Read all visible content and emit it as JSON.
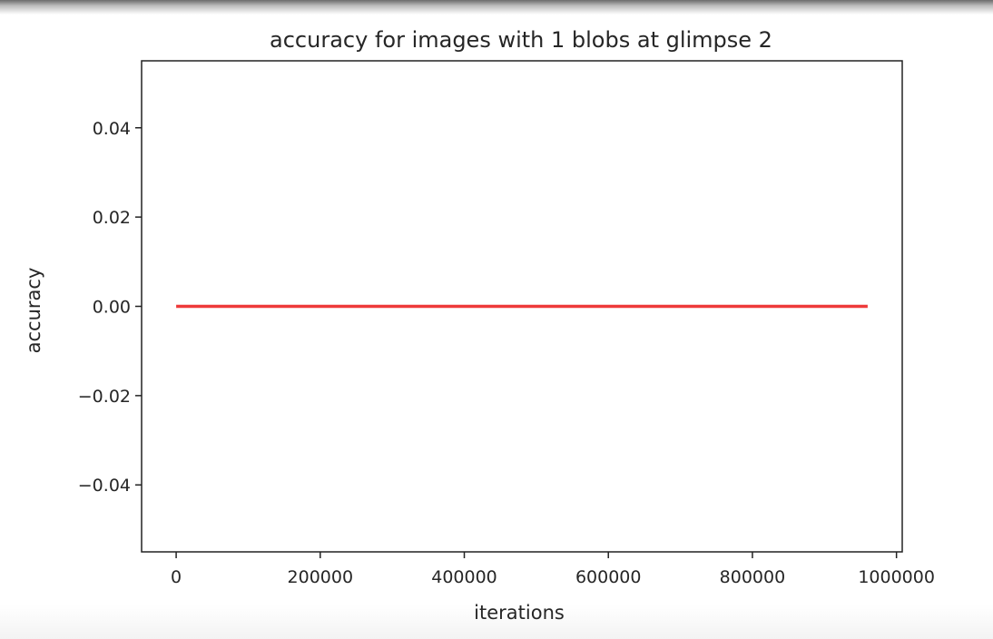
{
  "chart_data": {
    "type": "line",
    "title": "accuracy for images with 1 blobs at glimpse 2",
    "xlabel": "iterations",
    "ylabel": "accuracy",
    "xlim": [
      -48000,
      1008000
    ],
    "ylim": [
      -0.055,
      0.055
    ],
    "xticks": [
      0,
      200000,
      400000,
      600000,
      800000,
      1000000
    ],
    "xtick_labels": [
      "0",
      "200000",
      "400000",
      "600000",
      "800000",
      "1000000"
    ],
    "yticks": [
      0.04,
      0.02,
      0.0,
      -0.02,
      -0.04
    ],
    "ytick_labels": [
      "0.04",
      "0.02",
      "0.00",
      "−0.02",
      "−0.04"
    ],
    "grid": false,
    "series": [
      {
        "color": "#ee3a3a",
        "x": [
          0,
          960000
        ],
        "y": [
          0.0,
          0.0
        ]
      }
    ]
  }
}
